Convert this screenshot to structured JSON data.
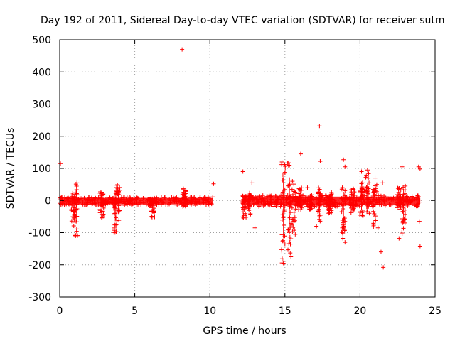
{
  "chart_data": {
    "type": "scatter",
    "title": "Day 192 of 2011, Sidereal Day-to-day VTEC variation (SDTVAR) for receiver sutm",
    "xlabel": "GPS time / hours",
    "ylabel": "SDTVAR / TECUs",
    "xlim": [
      0,
      25
    ],
    "ylim": [
      -300,
      500
    ],
    "xticks": [
      0,
      5,
      10,
      15,
      20,
      25
    ],
    "yticks": [
      -300,
      -200,
      -100,
      0,
      100,
      200,
      300,
      400,
      500
    ],
    "grid": true,
    "marker": "+",
    "color": "#ff0000",
    "series": [
      {
        "name": "SDTVAR",
        "dense_bands": [
          {
            "x_start": 0.0,
            "x_end": 10.2,
            "y_min": -12,
            "y_max": 8
          },
          {
            "x_start": 12.2,
            "x_end": 24.0,
            "y_min": -15,
            "y_max": 12
          }
        ],
        "spikes": [
          {
            "x": 0.9,
            "y_min": -80,
            "y_max": 25
          },
          {
            "x": 1.1,
            "y_min": -115,
            "y_max": 55
          },
          {
            "x": 2.8,
            "y_min": -60,
            "y_max": 30
          },
          {
            "x": 3.7,
            "y_min": -100,
            "y_max": 30
          },
          {
            "x": 3.9,
            "y_min": -70,
            "y_max": 50
          },
          {
            "x": 6.2,
            "y_min": -55,
            "y_max": 10
          },
          {
            "x": 8.3,
            "y_min": -20,
            "y_max": 40
          },
          {
            "x": 12.3,
            "y_min": -55,
            "y_max": 15
          },
          {
            "x": 12.6,
            "y_min": -45,
            "y_max": 25
          },
          {
            "x": 14.9,
            "y_min": -195,
            "y_max": 120
          },
          {
            "x": 15.3,
            "y_min": -175,
            "y_max": 120
          },
          {
            "x": 15.6,
            "y_min": -110,
            "y_max": 60
          },
          {
            "x": 16.0,
            "y_min": -30,
            "y_max": 40
          },
          {
            "x": 16.7,
            "y_min": -30,
            "y_max": 25
          },
          {
            "x": 17.3,
            "y_min": -75,
            "y_max": 40
          },
          {
            "x": 18.0,
            "y_min": -40,
            "y_max": 25
          },
          {
            "x": 18.9,
            "y_min": -130,
            "y_max": 45
          },
          {
            "x": 19.5,
            "y_min": -40,
            "y_max": 40
          },
          {
            "x": 20.1,
            "y_min": -50,
            "y_max": 60
          },
          {
            "x": 20.5,
            "y_min": -60,
            "y_max": 90
          },
          {
            "x": 21.0,
            "y_min": -90,
            "y_max": 50
          },
          {
            "x": 22.6,
            "y_min": -30,
            "y_max": 40
          },
          {
            "x": 22.9,
            "y_min": -120,
            "y_max": 60
          }
        ],
        "outliers": [
          {
            "x": 0.05,
            "y": 115
          },
          {
            "x": 1.05,
            "y": -110
          },
          {
            "x": 1.15,
            "y": 55
          },
          {
            "x": 6.15,
            "y": -52
          },
          {
            "x": 8.15,
            "y": 470
          },
          {
            "x": 10.25,
            "y": 52
          },
          {
            "x": 12.2,
            "y": 90
          },
          {
            "x": 12.8,
            "y": 55
          },
          {
            "x": 13.0,
            "y": -85
          },
          {
            "x": 14.8,
            "y": 120
          },
          {
            "x": 14.9,
            "y": -195
          },
          {
            "x": 15.0,
            "y": -135
          },
          {
            "x": 15.3,
            "y": 110
          },
          {
            "x": 15.4,
            "y": -175
          },
          {
            "x": 15.5,
            "y": 60
          },
          {
            "x": 16.05,
            "y": 145
          },
          {
            "x": 16.5,
            "y": 40
          },
          {
            "x": 17.1,
            "y": -80
          },
          {
            "x": 17.3,
            "y": 232
          },
          {
            "x": 17.35,
            "y": 122
          },
          {
            "x": 18.9,
            "y": 127
          },
          {
            "x": 19.0,
            "y": 105
          },
          {
            "x": 19.0,
            "y": -130
          },
          {
            "x": 20.1,
            "y": 90
          },
          {
            "x": 20.5,
            "y": 95
          },
          {
            "x": 20.6,
            "y": 55
          },
          {
            "x": 21.0,
            "y": 70
          },
          {
            "x": 21.2,
            "y": -85
          },
          {
            "x": 21.4,
            "y": -160
          },
          {
            "x": 21.55,
            "y": -208
          },
          {
            "x": 21.5,
            "y": 55
          },
          {
            "x": 22.6,
            "y": -118
          },
          {
            "x": 22.8,
            "y": 105
          },
          {
            "x": 23.0,
            "y": -70
          },
          {
            "x": 23.9,
            "y": 105
          },
          {
            "x": 24.0,
            "y": 98
          },
          {
            "x": 23.95,
            "y": -65
          },
          {
            "x": 24.0,
            "y": -142
          }
        ]
      }
    ]
  }
}
